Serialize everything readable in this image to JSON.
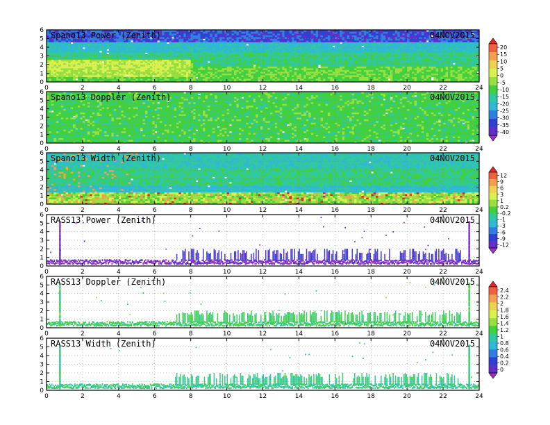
{
  "chart_data": [
    {
      "type": "heatmap",
      "title": "Spano13 Power (Zenith)",
      "date": "04NOV2015",
      "xlim": [
        0,
        24
      ],
      "ylim": [
        0,
        6
      ],
      "x_ticks": [
        0,
        2,
        4,
        6,
        8,
        10,
        12,
        14,
        16,
        18,
        20,
        22,
        24
      ],
      "y_ticks": [
        0,
        1,
        2,
        3,
        4,
        5,
        6
      ],
      "colorbar": 0,
      "style": "power"
    },
    {
      "type": "heatmap",
      "title": "Spano13 Doppler (Zenith)",
      "date": "04NOV2015",
      "xlim": [
        0,
        24
      ],
      "ylim": [
        0,
        6
      ],
      "x_ticks": [
        0,
        2,
        4,
        6,
        8,
        10,
        12,
        14,
        16,
        18,
        20,
        22,
        24
      ],
      "y_ticks": [
        0,
        1,
        2,
        3,
        4,
        5,
        6
      ],
      "colorbar": 0,
      "style": "doppler"
    },
    {
      "type": "heatmap",
      "title": "Spano13 Width (Zenith)",
      "date": "04NOV2015",
      "xlim": [
        0,
        24
      ],
      "ylim": [
        0,
        6
      ],
      "x_ticks": [
        0,
        2,
        4,
        6,
        8,
        10,
        12,
        14,
        16,
        18,
        20,
        22,
        24
      ],
      "y_ticks": [
        0,
        1,
        2,
        3,
        4,
        5,
        6
      ],
      "colorbar": 1,
      "style": "width"
    },
    {
      "type": "heatmap",
      "title": "RASS13 Power (Zenith)",
      "date": "04NOV2015",
      "xlim": [
        0,
        24
      ],
      "ylim": [
        0,
        6
      ],
      "x_ticks": [
        0,
        2,
        4,
        6,
        8,
        10,
        12,
        14,
        16,
        18,
        20,
        22,
        24
      ],
      "y_ticks": [
        0,
        1,
        2,
        3,
        4,
        5,
        6
      ],
      "colorbar": 1,
      "style": "rass-power"
    },
    {
      "type": "heatmap",
      "title": "RASS13 Doppler (Zenith)",
      "date": "04NOV2015",
      "xlim": [
        0,
        24
      ],
      "ylim": [
        0,
        6
      ],
      "x_ticks": [
        0,
        2,
        4,
        6,
        8,
        10,
        12,
        14,
        16,
        18,
        20,
        22,
        24
      ],
      "y_ticks": [
        0,
        1,
        2,
        3,
        4,
        5,
        6
      ],
      "colorbar": 2,
      "style": "rass-doppler"
    },
    {
      "type": "heatmap",
      "title": "RASS13 Width (Zenith)",
      "date": "04NOV2015",
      "xlim": [
        0,
        24
      ],
      "ylim": [
        0,
        6
      ],
      "x_ticks": [
        0,
        2,
        4,
        6,
        8,
        10,
        12,
        14,
        16,
        18,
        20,
        22,
        24
      ],
      "y_ticks": [
        0,
        1,
        2,
        3,
        4,
        5,
        6
      ],
      "colorbar": 2,
      "style": "rass-width"
    }
  ],
  "colorbars": [
    {
      "labels": [
        "20",
        "15",
        "10",
        "5",
        "0",
        "-5",
        "-10",
        "-15",
        "-20",
        "-25",
        "-30",
        "-35",
        "-40"
      ],
      "colors": [
        "#e8232b",
        "#f06040",
        "#f0a050",
        "#f0d050",
        "#d8f050",
        "#98e040",
        "#40d040",
        "#30c8a0",
        "#30b8d8",
        "#3080e0",
        "#3040d0",
        "#6030c8",
        "#a030c8"
      ]
    },
    {
      "labels": [
        "12",
        "9",
        "6",
        "3",
        "1",
        "0.2",
        "-0.2",
        "-1",
        "-3",
        "-6",
        "-9",
        "-12"
      ],
      "colors": [
        "#e8232b",
        "#f06040",
        "#f0a050",
        "#f0d050",
        "#d8f050",
        "#98e040",
        "#40d040",
        "#30c8a0",
        "#30b8d8",
        "#3080e0",
        "#3040d0",
        "#6030c8",
        "#a030c8"
      ]
    },
    {
      "labels": [
        "2.4",
        "2.2",
        "2",
        "1.8",
        "1.6",
        "1.4",
        "1.2",
        "1",
        "0.8",
        "0.6",
        "0.4",
        "0.2",
        "0"
      ],
      "colors": [
        "#e8232b",
        "#f06040",
        "#f0a050",
        "#f0d050",
        "#d8f050",
        "#98e040",
        "#40d040",
        "#30c8a0",
        "#30b8d8",
        "#3080e0",
        "#3040d0",
        "#6030c8",
        "#a030c8"
      ]
    }
  ]
}
